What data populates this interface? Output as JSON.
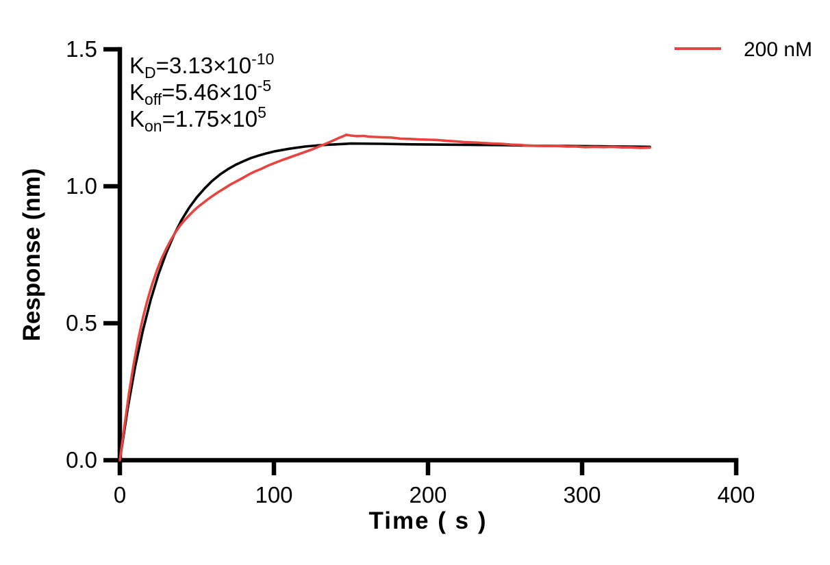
{
  "figure": {
    "background": "#ffffff",
    "axis_color": "#000000",
    "text_color": "#000000"
  },
  "chart_data": {
    "type": "line",
    "title": "",
    "xlabel": "Time ( s )",
    "ylabel": "Response (nm)",
    "xlim": [
      0,
      400
    ],
    "ylim": [
      0,
      1.5
    ],
    "grid": false,
    "x_ticks": [
      0,
      100,
      200,
      300,
      400
    ],
    "x_tick_labels": [
      "0",
      "100",
      "200",
      "300",
      "400"
    ],
    "y_ticks": [
      0,
      0.5,
      1.0,
      1.5
    ],
    "y_tick_labels": [
      "0.0",
      "0.5",
      "1.0",
      "1.5"
    ],
    "legend": {
      "position": "top-right",
      "entries": [
        {
          "label": "200 nM",
          "color": "#E8433E"
        }
      ]
    },
    "annotations": [
      {
        "base": "K",
        "sub": "D",
        "body": "=3.13×10",
        "sup": "-10"
      },
      {
        "base": "K",
        "sub": "off",
        "body": "=5.46×10",
        "sup": "-5"
      },
      {
        "base": "K",
        "sub": "on",
        "body": "=1.75×10",
        "sup": "5"
      }
    ],
    "series": [
      {
        "name": "200 nM",
        "role": "measured",
        "color": "#E8433E",
        "stroke_width": 3.6,
        "points": [
          [
            0,
            0
          ],
          [
            3,
            0.125
          ],
          [
            6,
            0.247
          ],
          [
            9,
            0.352
          ],
          [
            12,
            0.443
          ],
          [
            15,
            0.521
          ],
          [
            18,
            0.586
          ],
          [
            21,
            0.643
          ],
          [
            24,
            0.692
          ],
          [
            27,
            0.735
          ],
          [
            30,
            0.771
          ],
          [
            33,
            0.803
          ],
          [
            36,
            0.831
          ],
          [
            39,
            0.856
          ],
          [
            42,
            0.876
          ],
          [
            45,
            0.894
          ],
          [
            48,
            0.911
          ],
          [
            51,
            0.926
          ],
          [
            54,
            0.939
          ],
          [
            57,
            0.952
          ],
          [
            60,
            0.964
          ],
          [
            64,
            0.979
          ],
          [
            68,
            0.993
          ],
          [
            72,
            1.007
          ],
          [
            76,
            1.019
          ],
          [
            80,
            1.031
          ],
          [
            84,
            1.044
          ],
          [
            88,
            1.055
          ],
          [
            92,
            1.064
          ],
          [
            96,
            1.075
          ],
          [
            100,
            1.084
          ],
          [
            105,
            1.095
          ],
          [
            110,
            1.105
          ],
          [
            115,
            1.115
          ],
          [
            120,
            1.125
          ],
          [
            125,
            1.135
          ],
          [
            130,
            1.147
          ],
          [
            134,
            1.156
          ],
          [
            138,
            1.166
          ],
          [
            142,
            1.176
          ],
          [
            145,
            1.183
          ],
          [
            147,
            1.188
          ],
          [
            150,
            1.185
          ],
          [
            154,
            1.183
          ],
          [
            158,
            1.184
          ],
          [
            162,
            1.181
          ],
          [
            166,
            1.18
          ],
          [
            170,
            1.179
          ],
          [
            176,
            1.178
          ],
          [
            182,
            1.174
          ],
          [
            188,
            1.173
          ],
          [
            194,
            1.171
          ],
          [
            200,
            1.17
          ],
          [
            206,
            1.169
          ],
          [
            212,
            1.166
          ],
          [
            218,
            1.164
          ],
          [
            224,
            1.161
          ],
          [
            230,
            1.16
          ],
          [
            236,
            1.158
          ],
          [
            242,
            1.156
          ],
          [
            248,
            1.155
          ],
          [
            254,
            1.152
          ],
          [
            260,
            1.151
          ],
          [
            266,
            1.148
          ],
          [
            272,
            1.148
          ],
          [
            278,
            1.147
          ],
          [
            284,
            1.147
          ],
          [
            290,
            1.145
          ],
          [
            296,
            1.145
          ],
          [
            302,
            1.143
          ],
          [
            308,
            1.144
          ],
          [
            314,
            1.143
          ],
          [
            320,
            1.144
          ],
          [
            326,
            1.142
          ],
          [
            332,
            1.142
          ],
          [
            338,
            1.14
          ],
          [
            344,
            1.141
          ]
        ]
      },
      {
        "name": "fitted curve",
        "role": "fit",
        "color": "#000000",
        "stroke_width": 3.6,
        "points": [
          [
            0,
            0
          ],
          [
            5,
            0.186
          ],
          [
            10,
            0.343
          ],
          [
            15,
            0.475
          ],
          [
            20,
            0.585
          ],
          [
            25,
            0.678
          ],
          [
            30,
            0.755
          ],
          [
            35,
            0.821
          ],
          [
            40,
            0.876
          ],
          [
            45,
            0.922
          ],
          [
            50,
            0.96
          ],
          [
            55,
            0.992
          ],
          [
            60,
            1.02
          ],
          [
            65,
            1.043
          ],
          [
            70,
            1.062
          ],
          [
            75,
            1.078
          ],
          [
            80,
            1.091
          ],
          [
            85,
            1.103
          ],
          [
            90,
            1.112
          ],
          [
            95,
            1.12
          ],
          [
            100,
            1.127
          ],
          [
            110,
            1.137
          ],
          [
            120,
            1.145
          ],
          [
            130,
            1.15
          ],
          [
            140,
            1.153
          ],
          [
            150,
            1.156
          ],
          [
            170,
            1.155
          ],
          [
            190,
            1.153
          ],
          [
            210,
            1.152
          ],
          [
            230,
            1.151
          ],
          [
            250,
            1.15
          ],
          [
            270,
            1.148
          ],
          [
            290,
            1.147
          ],
          [
            310,
            1.146
          ],
          [
            330,
            1.145
          ],
          [
            344,
            1.144
          ]
        ]
      }
    ]
  }
}
